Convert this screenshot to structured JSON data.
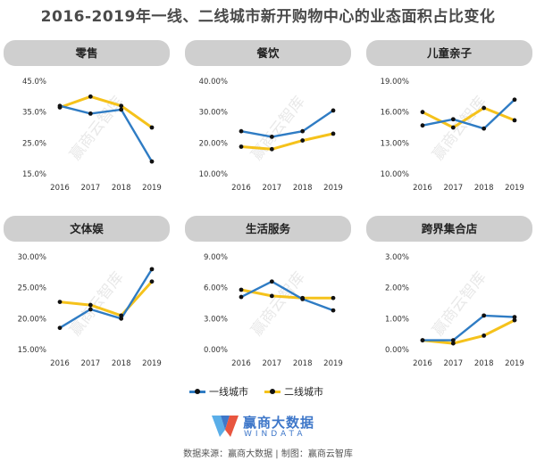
{
  "title": "2016-2019年一线、二线城市新开购物中心的业态面积占比变化",
  "legend": {
    "first_tier": "一线城市",
    "second_tier": "二线城市"
  },
  "colors": {
    "first_tier": "#2f7cc4",
    "second_tier": "#f5c21b",
    "marker": "#111111",
    "header_bg": "#cfcfcf"
  },
  "brand": {
    "name_cn": "赢商大数据",
    "name_en": "WINDATA",
    "logo_icon": "winshang-logo-icon"
  },
  "watermark": "赢商云智库",
  "footer": "数据来源：赢商大数据 | 制图：赢商云智库",
  "chart_data": [
    {
      "type": "line",
      "title": "零售",
      "x": [
        "2016",
        "2017",
        "2018",
        "2019"
      ],
      "ylim": [
        15,
        45
      ],
      "yticks": [
        "45.0%",
        "35.0%",
        "25.0%",
        "15.0%"
      ],
      "ytick_values": [
        45,
        35,
        25,
        15
      ],
      "series": [
        {
          "name": "一线城市",
          "values": [
            37.0,
            34.5,
            35.8,
            19.0
          ]
        },
        {
          "name": "二线城市",
          "values": [
            36.5,
            40.0,
            37.0,
            30.0
          ]
        }
      ]
    },
    {
      "type": "line",
      "title": "餐饮",
      "x": [
        "2016",
        "2017",
        "2018",
        "2019"
      ],
      "ylim": [
        10,
        40
      ],
      "yticks": [
        "40.00%",
        "30.00%",
        "20.00%",
        "10.00%"
      ],
      "ytick_values": [
        40,
        30,
        20,
        10
      ],
      "series": [
        {
          "name": "一线城市",
          "values": [
            23.8,
            22.0,
            23.8,
            30.5
          ]
        },
        {
          "name": "二线城市",
          "values": [
            18.8,
            18.0,
            20.8,
            23.0
          ]
        }
      ]
    },
    {
      "type": "line",
      "title": "儿童亲子",
      "x": [
        "2016",
        "2017",
        "2018",
        "2019"
      ],
      "ylim": [
        10,
        19
      ],
      "yticks": [
        "19.00%",
        "16.00%",
        "13.00%",
        "10.00%"
      ],
      "ytick_values": [
        19,
        16,
        13,
        10
      ],
      "series": [
        {
          "name": "一线城市",
          "values": [
            14.7,
            15.3,
            14.4,
            17.2
          ]
        },
        {
          "name": "二线城市",
          "values": [
            16.0,
            14.5,
            16.4,
            15.2
          ]
        }
      ]
    },
    {
      "type": "line",
      "title": "文体娱",
      "x": [
        "2016",
        "2017",
        "2018",
        "2019"
      ],
      "ylim": [
        15,
        30
      ],
      "yticks": [
        "30.00%",
        "25.00%",
        "20.00%",
        "15.00%"
      ],
      "ytick_values": [
        30,
        25,
        20,
        15
      ],
      "series": [
        {
          "name": "一线城市",
          "values": [
            18.5,
            21.5,
            20.0,
            28.0
          ]
        },
        {
          "name": "二线城市",
          "values": [
            22.7,
            22.2,
            20.5,
            26.0
          ]
        }
      ]
    },
    {
      "type": "line",
      "title": "生活服务",
      "x": [
        "2016",
        "2017",
        "2018",
        "2019"
      ],
      "ylim": [
        0,
        9
      ],
      "yticks": [
        "9.00%",
        "6.00%",
        "3.00%",
        "0.00%"
      ],
      "ytick_values": [
        9,
        6,
        3,
        0
      ],
      "series": [
        {
          "name": "一线城市",
          "values": [
            5.1,
            6.6,
            4.9,
            3.8
          ]
        },
        {
          "name": "二线城市",
          "values": [
            5.8,
            5.2,
            5.0,
            5.0
          ]
        }
      ]
    },
    {
      "type": "line",
      "title": "跨界集合店",
      "x": [
        "2016",
        "2017",
        "2018",
        "2019"
      ],
      "ylim": [
        0,
        3
      ],
      "yticks": [
        "3.00%",
        "2.00%",
        "1.00%",
        "0.00%"
      ],
      "ytick_values": [
        3,
        2,
        1,
        0
      ],
      "series": [
        {
          "name": "一线城市",
          "values": [
            0.3,
            0.3,
            1.1,
            1.05
          ]
        },
        {
          "name": "二线城市",
          "values": [
            0.3,
            0.2,
            0.45,
            0.95
          ]
        }
      ]
    }
  ]
}
